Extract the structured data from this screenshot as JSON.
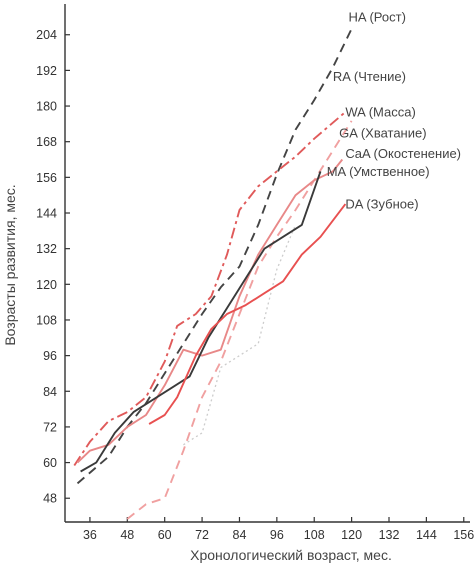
{
  "chart_data": {
    "type": "line",
    "xlabel": "Хронологический возраст, мес.",
    "ylabel": "Возрасты развития, мес.",
    "xlim": [
      28,
      158
    ],
    "ylim": [
      40,
      213
    ],
    "xticks": [
      36,
      48,
      60,
      72,
      84,
      96,
      108,
      120,
      132,
      144,
      156
    ],
    "yticks": [
      48,
      60,
      72,
      84,
      96,
      108,
      120,
      132,
      144,
      156,
      168,
      180,
      192,
      204
    ],
    "grid": false,
    "legend": "none",
    "series": [
      {
        "name": "HA (Рост)",
        "color": "#444444",
        "dash": "dashed",
        "x": [
          32,
          42,
          48,
          54,
          60,
          66,
          72,
          78,
          84,
          90,
          96,
          102,
          108,
          114,
          120
        ],
        "y": [
          53,
          62,
          72,
          80,
          90,
          100,
          110,
          119,
          126,
          140,
          157,
          172,
          182,
          193,
          206
        ]
      },
      {
        "name": "RA (Чтение)",
        "color": "#cccccc",
        "dash": "dotted",
        "x": [
          66,
          72,
          78,
          84,
          90,
          96,
          102
        ],
        "y": [
          66,
          70,
          92,
          96,
          100,
          125,
          140
        ]
      },
      {
        "name": "WA (Масса)",
        "color": "#e05a5a",
        "dash": "dashdot",
        "x": [
          31,
          36,
          42,
          48,
          54,
          60,
          64,
          70,
          75,
          80,
          84,
          90,
          96,
          102,
          108,
          118
        ],
        "y": [
          59,
          67,
          74,
          77,
          82,
          94,
          106,
          110,
          116,
          130,
          145,
          153,
          158,
          163,
          169,
          178
        ]
      },
      {
        "name": "GA (Хватание)",
        "color": "#f0a0a0",
        "dash": "dashed",
        "x": [
          48,
          54,
          60,
          66,
          72,
          78,
          84,
          90,
          96,
          102,
          108,
          114,
          120
        ],
        "y": [
          41,
          46,
          48,
          64,
          82,
          94,
          110,
          126,
          136,
          145,
          155,
          165,
          175
        ]
      },
      {
        "name": "CaA (Окостенение)",
        "color": "#e88888",
        "dash": "solid",
        "x": [
          32,
          36,
          42,
          48,
          54,
          60,
          66,
          72,
          78,
          84,
          90,
          96,
          102,
          108,
          114,
          117
        ],
        "y": [
          60,
          64,
          66,
          72,
          76,
          86,
          98,
          96,
          98,
          116,
          130,
          140,
          150,
          155,
          158,
          162
        ]
      },
      {
        "name": "MA (Умственное)",
        "color": "#3a3a3a",
        "dash": "solid",
        "x": [
          33,
          38,
          44,
          50,
          56,
          62,
          68,
          74,
          80,
          86,
          92,
          98,
          104,
          110
        ],
        "y": [
          57,
          60,
          70,
          77,
          81,
          85,
          89,
          102,
          112,
          122,
          132,
          136,
          140,
          158
        ]
      },
      {
        "name": "DA (Зубное)",
        "color": "#e85050",
        "dash": "solid",
        "x": [
          55,
          60,
          64,
          70,
          75,
          80,
          86,
          92,
          98,
          104,
          110,
          118
        ],
        "y": [
          73,
          76,
          82,
          96,
          105,
          110,
          113,
          117,
          121,
          130,
          136,
          147
        ]
      }
    ],
    "labels": [
      {
        "text": "HA (Рост)",
        "x": 119,
        "y": 210
      },
      {
        "text": "RA (Чтение)",
        "x": 114,
        "y": 190
      },
      {
        "text": "WA (Масса)",
        "x": 118,
        "y": 178
      },
      {
        "text": "GA (Хватание)",
        "x": 116,
        "y": 171
      },
      {
        "text": "CaA (Окостенение)",
        "x": 118,
        "y": 164
      },
      {
        "text": "MA (Умственное)",
        "x": 112,
        "y": 158
      },
      {
        "text": "DA (Зубное)",
        "x": 118,
        "y": 147
      }
    ]
  }
}
